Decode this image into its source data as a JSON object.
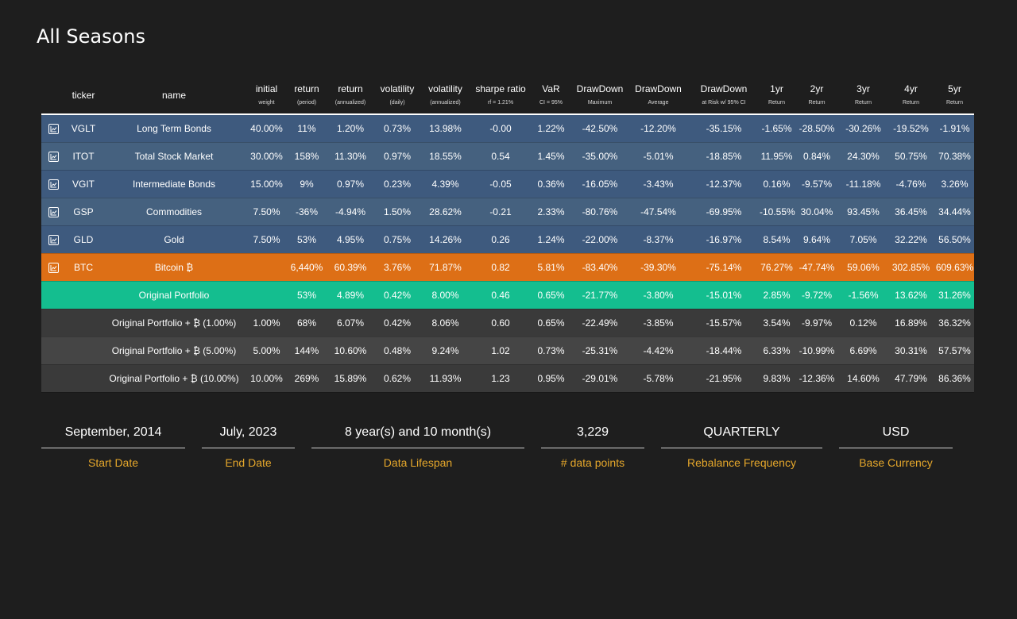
{
  "title": "All Seasons",
  "headers": [
    {
      "main": "",
      "sub": ""
    },
    {
      "main": "ticker",
      "sub": ""
    },
    {
      "main": "name",
      "sub": ""
    },
    {
      "main": "initial",
      "sub": "weight"
    },
    {
      "main": "return",
      "sub": "(period)"
    },
    {
      "main": "return",
      "sub": "(annualized)"
    },
    {
      "main": "volatility",
      "sub": "(daily)"
    },
    {
      "main": "volatility",
      "sub": "(annualized)"
    },
    {
      "main": "sharpe ratio",
      "sub": "rf = 1.21%"
    },
    {
      "main": "VaR",
      "sub": "CI = 95%"
    },
    {
      "main": "DrawDown",
      "sub": "Maximum"
    },
    {
      "main": "DrawDown",
      "sub": "Average"
    },
    {
      "main": "DrawDown",
      "sub": "at Risk w/ 95% CI"
    },
    {
      "main": "1yr",
      "sub": "Return"
    },
    {
      "main": "2yr",
      "sub": "Return"
    },
    {
      "main": "3yr",
      "sub": "Return"
    },
    {
      "main": "4yr",
      "sub": "Return"
    },
    {
      "main": "5yr",
      "sub": "Return"
    }
  ],
  "rows": [
    {
      "kind": "asset",
      "icon": "chart-icon",
      "ticker": "VGLT",
      "name": "Long Term Bonds",
      "values": [
        "40.00%",
        "11%",
        "1.20%",
        "0.73%",
        "13.98%",
        "-0.00",
        "1.22%",
        "-42.50%",
        "-12.20%",
        "-35.15%",
        "-1.65%",
        "-28.50%",
        "-30.26%",
        "-19.52%",
        "-1.91%"
      ]
    },
    {
      "kind": "asset",
      "icon": "chart-icon",
      "ticker": "ITOT",
      "name": "Total Stock Market",
      "values": [
        "30.00%",
        "158%",
        "11.30%",
        "0.97%",
        "18.55%",
        "0.54",
        "1.45%",
        "-35.00%",
        "-5.01%",
        "-18.85%",
        "11.95%",
        "0.84%",
        "24.30%",
        "50.75%",
        "70.38%"
      ]
    },
    {
      "kind": "asset",
      "icon": "chart-icon",
      "ticker": "VGIT",
      "name": "Intermediate Bonds",
      "values": [
        "15.00%",
        "9%",
        "0.97%",
        "0.23%",
        "4.39%",
        "-0.05",
        "0.36%",
        "-16.05%",
        "-3.43%",
        "-12.37%",
        "0.16%",
        "-9.57%",
        "-11.18%",
        "-4.76%",
        "3.26%"
      ]
    },
    {
      "kind": "asset",
      "icon": "chart-icon",
      "ticker": "GSP",
      "name": "Commodities",
      "values": [
        "7.50%",
        "-36%",
        "-4.94%",
        "1.50%",
        "28.62%",
        "-0.21",
        "2.33%",
        "-80.76%",
        "-47.54%",
        "-69.95%",
        "-10.55%",
        "30.04%",
        "93.45%",
        "36.45%",
        "34.44%"
      ]
    },
    {
      "kind": "asset",
      "icon": "chart-icon",
      "ticker": "GLD",
      "name": "Gold",
      "values": [
        "7.50%",
        "53%",
        "4.95%",
        "0.75%",
        "14.26%",
        "0.26",
        "1.24%",
        "-22.00%",
        "-8.37%",
        "-16.97%",
        "8.54%",
        "9.64%",
        "7.05%",
        "32.22%",
        "56.50%"
      ]
    },
    {
      "kind": "btc",
      "icon": "chart-icon",
      "ticker": "BTC",
      "name": "Bitcoin ₿",
      "values": [
        "",
        "6,440%",
        "60.39%",
        "3.76%",
        "71.87%",
        "0.82",
        "5.81%",
        "-83.40%",
        "-39.30%",
        "-75.14%",
        "76.27%",
        "-47.74%",
        "59.06%",
        "302.85%",
        "609.63%"
      ]
    },
    {
      "kind": "orig",
      "icon": "",
      "ticker": "",
      "name": "Original Portfolio",
      "values": [
        "",
        "53%",
        "4.89%",
        "0.42%",
        "8.00%",
        "0.46",
        "0.65%",
        "-21.77%",
        "-3.80%",
        "-15.01%",
        "2.85%",
        "-9.72%",
        "-1.56%",
        "13.62%",
        "31.26%"
      ]
    },
    {
      "kind": "variant",
      "icon": "",
      "ticker": "",
      "name": "Original Portfolio + ₿ (1.00%)",
      "values": [
        "1.00%",
        "68%",
        "6.07%",
        "0.42%",
        "8.06%",
        "0.60",
        "0.65%",
        "-22.49%",
        "-3.85%",
        "-15.57%",
        "3.54%",
        "-9.97%",
        "0.12%",
        "16.89%",
        "36.32%"
      ]
    },
    {
      "kind": "variant",
      "icon": "",
      "ticker": "",
      "name": "Original Portfolio + ₿ (5.00%)",
      "values": [
        "5.00%",
        "144%",
        "10.60%",
        "0.48%",
        "9.24%",
        "1.02",
        "0.73%",
        "-25.31%",
        "-4.42%",
        "-18.44%",
        "6.33%",
        "-10.99%",
        "6.69%",
        "30.31%",
        "57.57%"
      ]
    },
    {
      "kind": "variant",
      "icon": "",
      "ticker": "",
      "name": "Original Portfolio + ₿ (10.00%)",
      "values": [
        "10.00%",
        "269%",
        "15.89%",
        "0.62%",
        "11.93%",
        "1.23",
        "0.95%",
        "-29.01%",
        "-5.78%",
        "-21.95%",
        "9.83%",
        "-12.36%",
        "14.60%",
        "47.79%",
        "86.36%"
      ]
    }
  ],
  "stats": [
    {
      "value": "September, 2014",
      "label": "Start Date"
    },
    {
      "value": "July, 2023",
      "label": "End Date"
    },
    {
      "value": "8 year(s) and 10 month(s)",
      "label": "Data Lifespan"
    },
    {
      "value": "3,229",
      "label": "# data points"
    },
    {
      "value": "QUARTERLY",
      "label": "Rebalance Frequency"
    },
    {
      "value": "USD",
      "label": "Base Currency"
    }
  ],
  "colors": {
    "background": "#1e1e1e",
    "asset_row": "#3e5a7e",
    "btc_row": "#dd6f16",
    "original_row": "#14be8f",
    "variant_row": "#3a3a3a",
    "label_accent": "#e5a72b"
  }
}
